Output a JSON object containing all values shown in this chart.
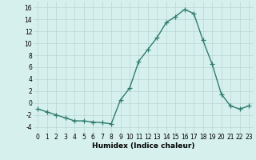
{
  "x": [
    0,
    1,
    2,
    3,
    4,
    5,
    6,
    7,
    8,
    9,
    10,
    11,
    12,
    13,
    14,
    15,
    16,
    17,
    18,
    19,
    20,
    21,
    22,
    23
  ],
  "y": [
    -1,
    -1.5,
    -2,
    -2.5,
    -3,
    -3,
    -3.2,
    -3.3,
    -3.5,
    0.5,
    2.5,
    7,
    9,
    11,
    13.5,
    14.5,
    15.7,
    15,
    10.5,
    6.5,
    1.5,
    -0.5,
    -1,
    -0.5
  ],
  "line_color": "#2e7d6e",
  "marker": "+",
  "marker_size": 4,
  "bg_color": "#d6f0ee",
  "grid_color": "#b8d4d0",
  "xlabel": "Humidex (Indice chaleur)",
  "ylim": [
    -5,
    17
  ],
  "xlim": [
    -0.5,
    23.5
  ],
  "yticks": [
    -4,
    -2,
    0,
    2,
    4,
    6,
    8,
    10,
    12,
    14,
    16
  ],
  "xticks": [
    0,
    1,
    2,
    3,
    4,
    5,
    6,
    7,
    8,
    9,
    10,
    11,
    12,
    13,
    14,
    15,
    16,
    17,
    18,
    19,
    20,
    21,
    22,
    23
  ],
  "xlabel_fontsize": 6.5,
  "tick_fontsize": 5.5,
  "line_width": 1.0,
  "marker_edge_width": 0.9
}
